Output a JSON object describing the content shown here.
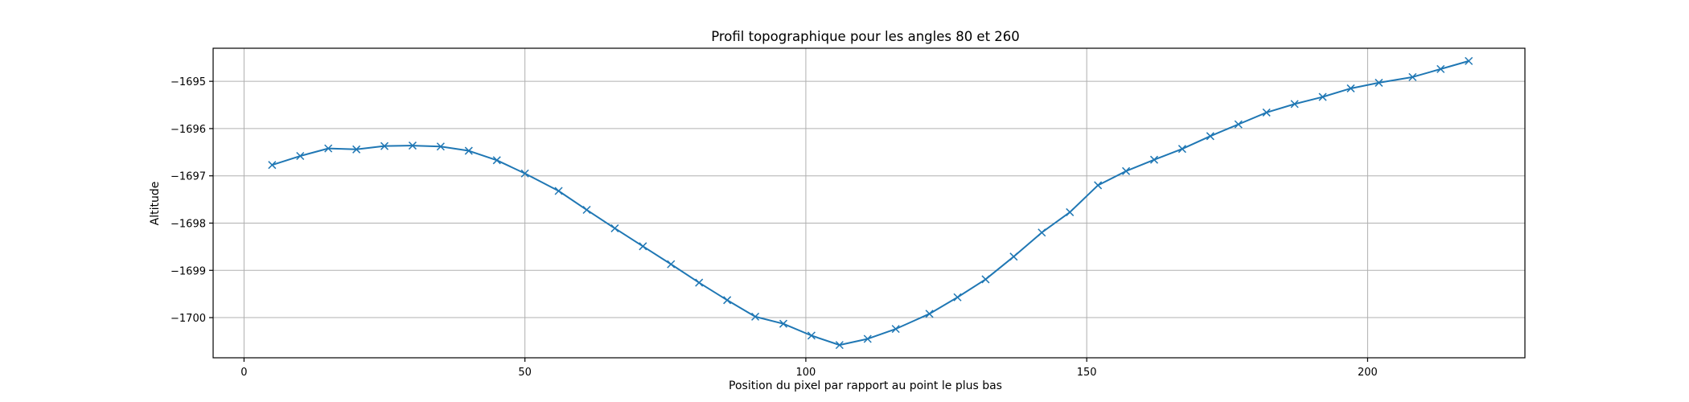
{
  "chart_data": {
    "type": "line",
    "title": "Profil topographique pour les angles 80 et 260",
    "xlabel": "Position du pixel par rapport au point le plus bas",
    "ylabel": "Altitude",
    "xlim": [
      -5.5,
      228
    ],
    "ylim": [
      -1700.85,
      -1694.3
    ],
    "xticks": [
      0,
      50,
      100,
      150,
      200
    ],
    "yticks": [
      -1700,
      -1699,
      -1698,
      -1697,
      -1696,
      -1695
    ],
    "ytick_labels": [
      "−1700",
      "−1699",
      "−1698",
      "−1697",
      "−1696",
      "−1695"
    ],
    "grid": true,
    "marker": "x",
    "color": "#1f77b4",
    "series": [
      {
        "x": [
          5,
          10,
          15,
          20,
          25,
          30,
          35,
          40,
          45,
          50,
          56,
          61,
          66,
          71,
          76,
          81,
          86,
          91,
          96,
          101,
          106,
          111,
          116,
          122,
          127,
          132,
          137,
          142,
          147,
          152,
          157,
          162,
          167,
          172,
          177,
          182,
          187,
          192,
          197,
          202,
          208,
          213,
          218
        ],
        "y": [
          -1696.77,
          -1696.58,
          -1696.42,
          -1696.44,
          -1696.37,
          -1696.36,
          -1696.38,
          -1696.47,
          -1696.67,
          -1696.95,
          -1697.32,
          -1697.72,
          -1698.11,
          -1698.49,
          -1698.87,
          -1699.26,
          -1699.63,
          -1699.98,
          -1700.13,
          -1700.38,
          -1700.58,
          -1700.45,
          -1700.24,
          -1699.92,
          -1699.57,
          -1699.19,
          -1698.71,
          -1698.2,
          -1697.77,
          -1697.2,
          -1696.9,
          -1696.66,
          -1696.43,
          -1696.16,
          -1695.91,
          -1695.66,
          -1695.48,
          -1695.33,
          -1695.15,
          -1695.03,
          -1694.91,
          -1694.74,
          -1694.57
        ]
      }
    ]
  }
}
